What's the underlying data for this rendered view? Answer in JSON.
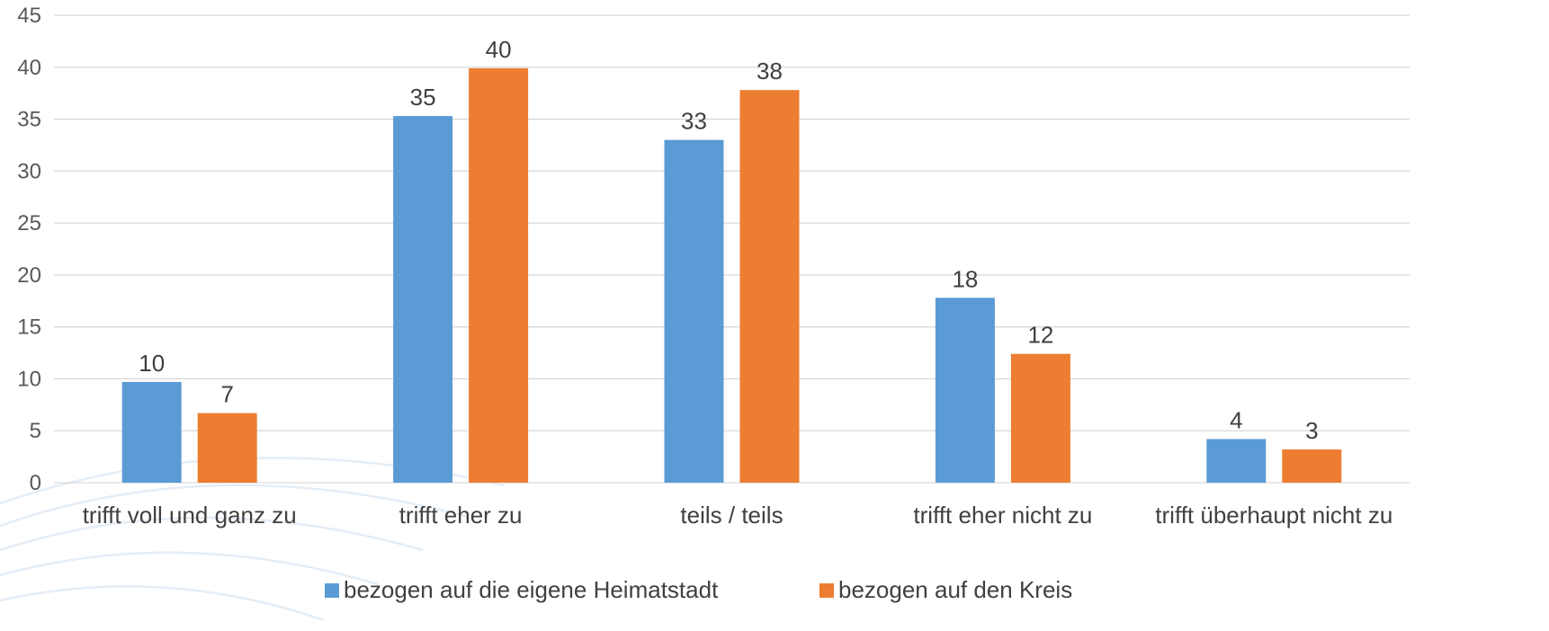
{
  "chart_data": {
    "type": "bar",
    "categories": [
      "trifft voll und ganz zu",
      "trifft eher zu",
      "teils / teils",
      "trifft eher nicht zu",
      "trifft überhaupt nicht zu"
    ],
    "series": [
      {
        "name": "bezogen auf die eigene Heimatstadt",
        "color": "#5b9bd5",
        "values": [
          9.7,
          35.3,
          33.0,
          17.8,
          4.2
        ],
        "labels": [
          "10",
          "35",
          "33",
          "18",
          "4"
        ]
      },
      {
        "name": "bezogen auf den Kreis",
        "color": "#ed7d31",
        "values": [
          6.7,
          39.9,
          37.8,
          12.4,
          3.2
        ],
        "labels": [
          "7",
          "40",
          "38",
          "12",
          "3"
        ]
      }
    ],
    "ylim": [
      0,
      45
    ],
    "yticks": [
      0,
      5,
      10,
      15,
      20,
      25,
      30,
      35,
      40,
      45
    ],
    "grid": true,
    "legend_position": "bottom",
    "title": "",
    "xlabel": "",
    "ylabel": ""
  }
}
